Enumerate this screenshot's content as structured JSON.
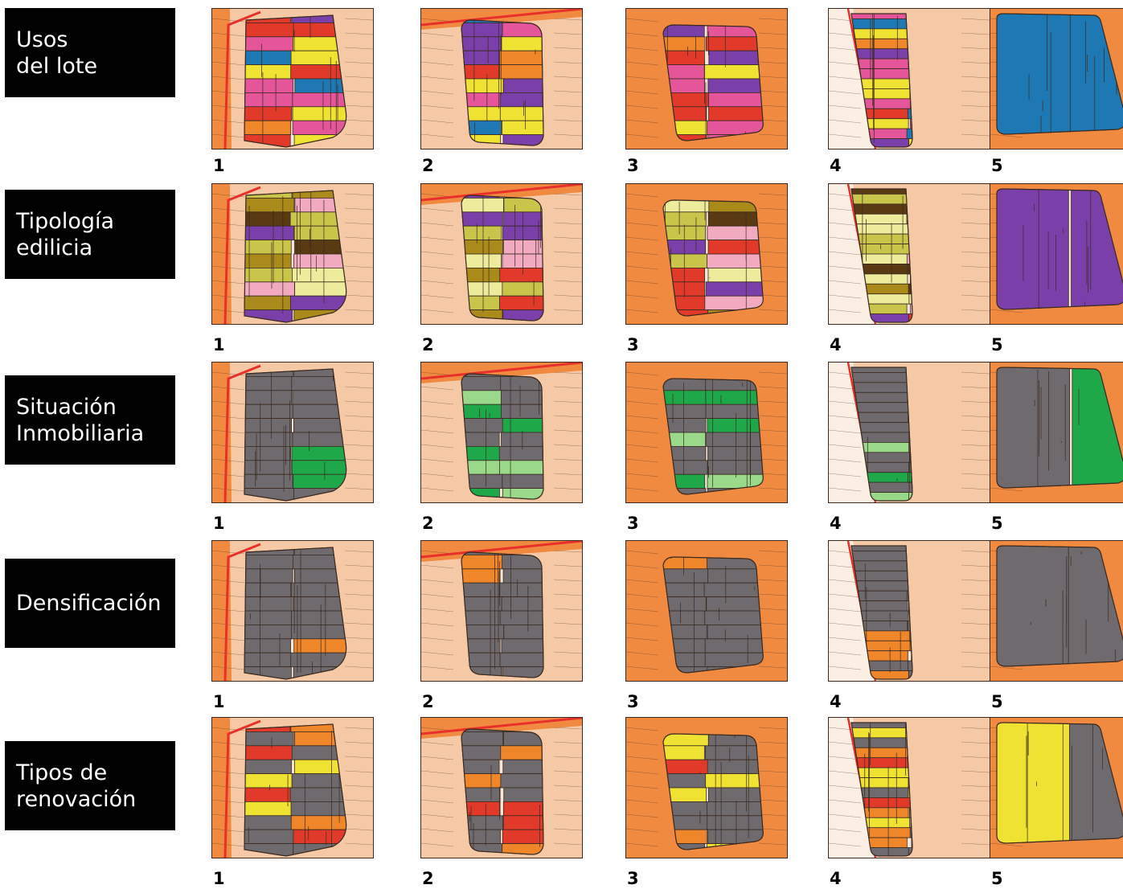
{
  "rows": [
    {
      "label": "Usos\ndel lote",
      "theme": "usos"
    },
    {
      "label": "Tipología\nedilicia",
      "theme": "tipologia"
    },
    {
      "label": "Situación\nInmobiliaria",
      "theme": "situacion"
    },
    {
      "label": "Densificación",
      "theme": "densificacion"
    },
    {
      "label": "Tipos de\nrenovación",
      "theme": "renovacion"
    }
  ],
  "columns": [
    "1",
    "2",
    "3",
    "4",
    "5"
  ],
  "colors": {
    "surround": "#f6c9a6",
    "surround_dark": "#f08a40",
    "street_red": "#e8302a",
    "lot_line": "#3a2a20",
    "building_grey": "#6e6a6e",
    "pink": "#e4559a",
    "yellow": "#f0e232",
    "orange": "#f0862a",
    "red": "#e23a2a",
    "blue": "#1e78b4",
    "purple": "#7a3fa8",
    "olive": "#c9c44a",
    "dark_olive": "#a98a1a",
    "brown": "#5a3a12",
    "light_pink": "#f2aac0",
    "teal": "#3fbcc4",
    "green": "#1fa84a",
    "light_green": "#9ad88a",
    "light_yellow": "#ecec9c"
  }
}
